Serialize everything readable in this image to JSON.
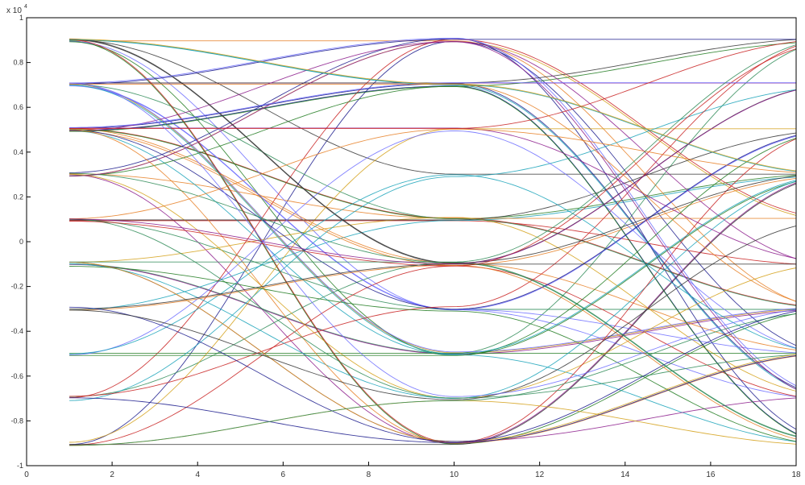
{
  "chart_data": {
    "type": "line",
    "title": "",
    "xlabel": "",
    "ylabel": "",
    "exponent_label": "x 10",
    "exponent_power": "4",
    "xlim": [
      0,
      18
    ],
    "ylim": [
      -1,
      1
    ],
    "x_ticks": [
      0,
      2,
      4,
      6,
      8,
      10,
      12,
      14,
      16,
      18
    ],
    "x_tick_labels": [
      "0",
      "2",
      "4",
      "6",
      "8",
      "10",
      "12",
      "14",
      "16",
      "18"
    ],
    "y_ticks": [
      -1,
      -0.8,
      -0.6,
      -0.4,
      -0.2,
      0,
      0.2,
      0.4,
      0.6,
      0.8,
      1
    ],
    "y_tick_labels": [
      "-1",
      "-0.8",
      "-0.6",
      "-0.4",
      "-0.2",
      "0",
      "0.2",
      "0.4",
      "0.6",
      "0.8",
      "1"
    ],
    "trace_x_start": 1,
    "trace_x_end": 18,
    "symbol_period": 9,
    "symbol_levels": [
      -0.9,
      -0.7,
      -0.5,
      -0.3,
      -0.1,
      0.1,
      0.3,
      0.5,
      0.7,
      0.9
    ],
    "crossing_times": [
      0.5,
      4.5,
      13.5,
      18
    ],
    "levels_upper_band": [
      0.9,
      0.75,
      0.6,
      0.45,
      0.3,
      0.15
    ],
    "grid": false,
    "legend": "none",
    "colors": [
      "#1a1a8c",
      "#c81e1e",
      "#1e7a1e",
      "#d4a017",
      "#8b1a8b",
      "#17a2b8",
      "#333333",
      "#e67e22",
      "#6c6cff",
      "#2e8b57"
    ]
  }
}
